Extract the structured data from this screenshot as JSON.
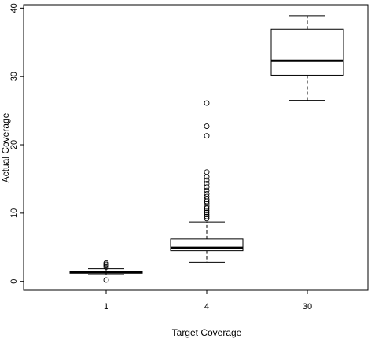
{
  "chart_data": {
    "type": "boxplot",
    "xlabel": "Target Coverage",
    "ylabel": "Actual Coverage",
    "ylim": [
      -1.3,
      40.5
    ],
    "yticks": [
      0,
      10,
      20,
      30,
      40
    ],
    "categories": [
      "1",
      "4",
      "30"
    ],
    "boxes": [
      {
        "category": "1",
        "whisker_low": 1.0,
        "q1": 1.2,
        "median": 1.35,
        "q3": 1.5,
        "whisker_high": 1.85,
        "outliers": [
          0.2,
          2.1,
          2.3,
          2.5,
          2.7
        ]
      },
      {
        "category": "4",
        "whisker_low": 2.8,
        "q1": 4.5,
        "median": 4.9,
        "q3": 6.2,
        "whisker_high": 8.7,
        "outliers": [
          9.2,
          9.5,
          9.8,
          10.1,
          10.4,
          10.7,
          11.0,
          11.4,
          11.7,
          12.0,
          12.4,
          12.8,
          13.3,
          13.8,
          14.3,
          14.8,
          15.3,
          16.0,
          21.3,
          22.7,
          26.1
        ]
      },
      {
        "category": "30",
        "whisker_low": 26.5,
        "q1": 30.2,
        "median": 32.3,
        "q3": 36.9,
        "whisker_high": 38.9,
        "outliers": []
      }
    ]
  }
}
